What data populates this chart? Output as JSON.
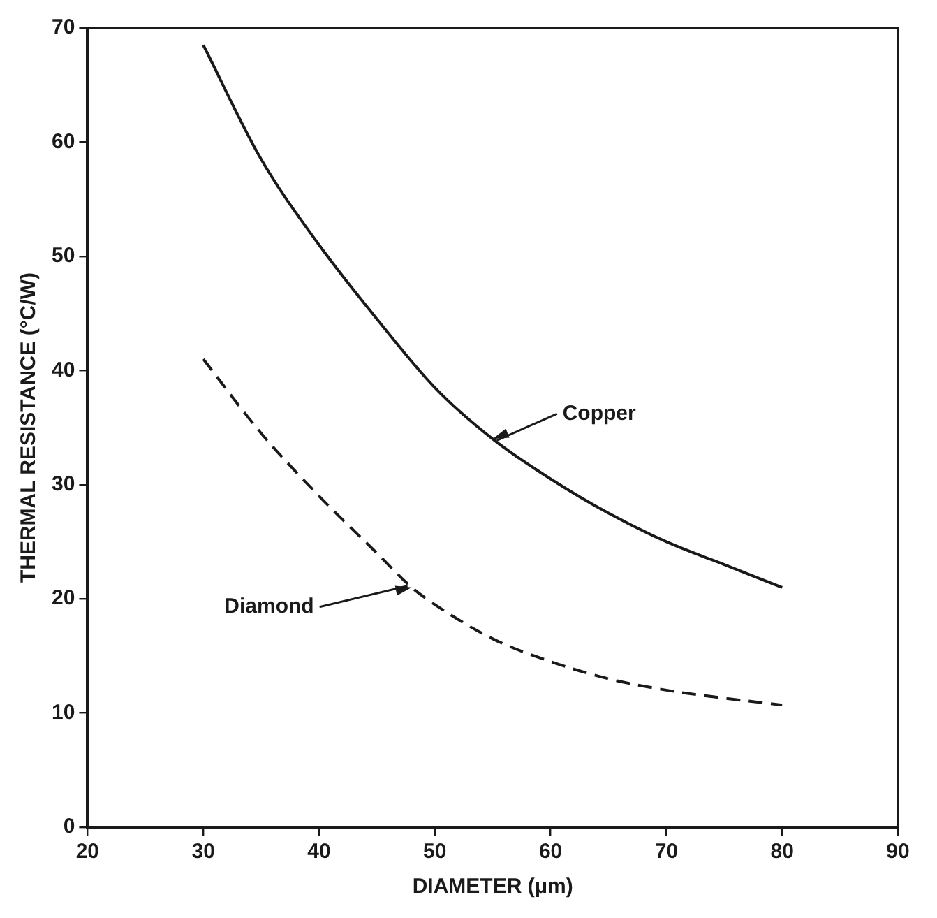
{
  "chart_data": {
    "type": "line",
    "xlabel": "DIAMETER (μm)",
    "ylabel": "THERMAL RESISTANCE (°C/W)",
    "xlim": [
      20,
      90
    ],
    "xticks": [
      20,
      30,
      40,
      50,
      60,
      70,
      80,
      90
    ],
    "ylim": [
      0,
      70
    ],
    "yticks": [
      0,
      10,
      20,
      30,
      40,
      50,
      60,
      70
    ],
    "grid": false,
    "legend": false,
    "marker": "none",
    "series": [
      {
        "color": "#1a1a1a",
        "line_style": "solid",
        "x": [
          30,
          35,
          40,
          45,
          50,
          55,
          60,
          65,
          70,
          75,
          80
        ],
        "values": [
          68.5,
          58.5,
          51,
          44.5,
          38.5,
          34,
          30.5,
          27.5,
          25,
          23,
          21
        ]
      },
      {
        "color": "#1a1a1a",
        "line_style": "dashed",
        "x": [
          30,
          35,
          40,
          45,
          48,
          50,
          55,
          60,
          65,
          70,
          75,
          80
        ],
        "values": [
          41,
          34.5,
          29,
          24,
          21,
          19.5,
          16.5,
          14.5,
          13,
          12,
          11.3,
          10.7
        ]
      }
    ],
    "annotations": [
      {
        "text": "Copper",
        "x": 55,
        "y": 34
      },
      {
        "text": "Diamond",
        "x": 48,
        "y": 21
      }
    ]
  }
}
